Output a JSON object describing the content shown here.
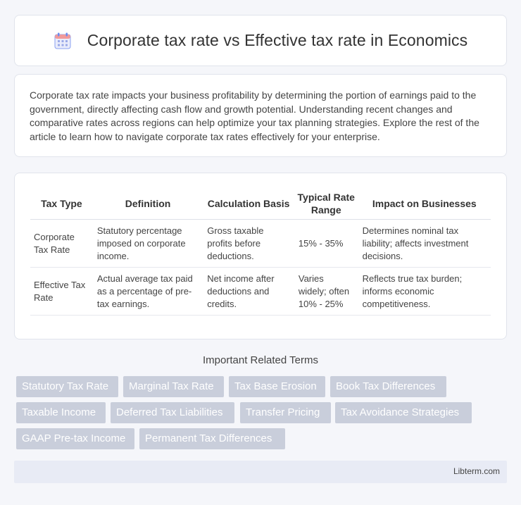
{
  "header": {
    "title": "Corporate tax rate vs Effective tax rate in Economics",
    "icon": "calendar-icon"
  },
  "intro": {
    "text": "Corporate tax rate impacts your business profitability by determining the portion of earnings paid to the government, directly affecting cash flow and growth potential. Understanding recent changes and comparative rates across regions can help optimize your tax planning strategies. Explore the rest of the article to learn how to navigate corporate tax rates effectively for your enterprise."
  },
  "table": {
    "headers": [
      "Tax Type",
      "Definition",
      "Calculation Basis",
      "Typical Rate Range",
      "Impact on Businesses"
    ],
    "rows": [
      [
        "Corporate Tax Rate",
        "Statutory percentage imposed on corporate income.",
        "Gross taxable profits before deductions.",
        "15% - 35%",
        "Determines nominal tax liability; affects investment decisions."
      ],
      [
        "Effective Tax Rate",
        "Actual average tax paid as a percentage of pre-tax earnings.",
        "Net income after deductions and credits.",
        "Varies widely; often 10% - 25%",
        "Reflects true tax burden; informs economic competitiveness."
      ]
    ]
  },
  "related": {
    "heading": "Important Related Terms",
    "tags": [
      "Statutory Tax Rate",
      "Marginal Tax Rate",
      "Tax Base Erosion",
      "Book Tax Differences",
      "Taxable Income",
      "Deferred Tax Liabilities",
      "Transfer Pricing",
      "Tax Avoidance Strategies",
      "GAAP Pre-tax Income",
      "Permanent Tax Differences"
    ]
  },
  "footer": {
    "link": "Libterm.com"
  },
  "colors": {
    "tag_bg": "#c9cedb",
    "footer_bg": "#e8ebf5",
    "icon_accent": "#6b8cf0"
  }
}
